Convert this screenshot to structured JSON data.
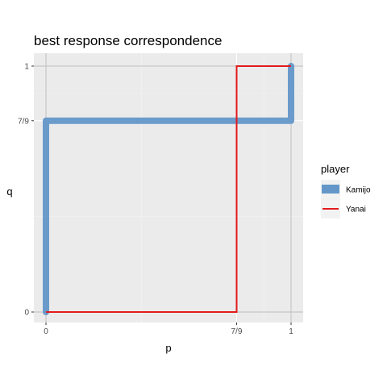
{
  "chart_data": {
    "type": "line",
    "title": "best response correspondence",
    "xlabel": "p",
    "ylabel": "q",
    "xlim": [
      0,
      1
    ],
    "ylim": [
      0,
      1
    ],
    "x_ticks": [
      {
        "value": 0,
        "label": "0"
      },
      {
        "value": 0.7778,
        "label": "7/9"
      },
      {
        "value": 1,
        "label": "1"
      }
    ],
    "y_ticks": [
      {
        "value": 0,
        "label": "0"
      },
      {
        "value": 0.7778,
        "label": "7/9"
      },
      {
        "value": 1,
        "label": "1"
      }
    ],
    "reference_lines": {
      "x": [
        0,
        1
      ],
      "y": [
        0,
        1
      ]
    },
    "grid": true,
    "legend": {
      "title": "player",
      "position": "right"
    },
    "series": [
      {
        "name": "Kamijo",
        "color": "#6497c8",
        "points": [
          {
            "x": 0,
            "y": 0
          },
          {
            "x": 0,
            "y": 0.7778
          },
          {
            "x": 1,
            "y": 0.7778
          },
          {
            "x": 1,
            "y": 1
          }
        ]
      },
      {
        "name": "Yanai",
        "color": "#e41a1c",
        "points": [
          {
            "x": 0,
            "y": 0
          },
          {
            "x": 0.7778,
            "y": 0
          },
          {
            "x": 0.7778,
            "y": 1
          },
          {
            "x": 1,
            "y": 1
          }
        ]
      }
    ]
  }
}
